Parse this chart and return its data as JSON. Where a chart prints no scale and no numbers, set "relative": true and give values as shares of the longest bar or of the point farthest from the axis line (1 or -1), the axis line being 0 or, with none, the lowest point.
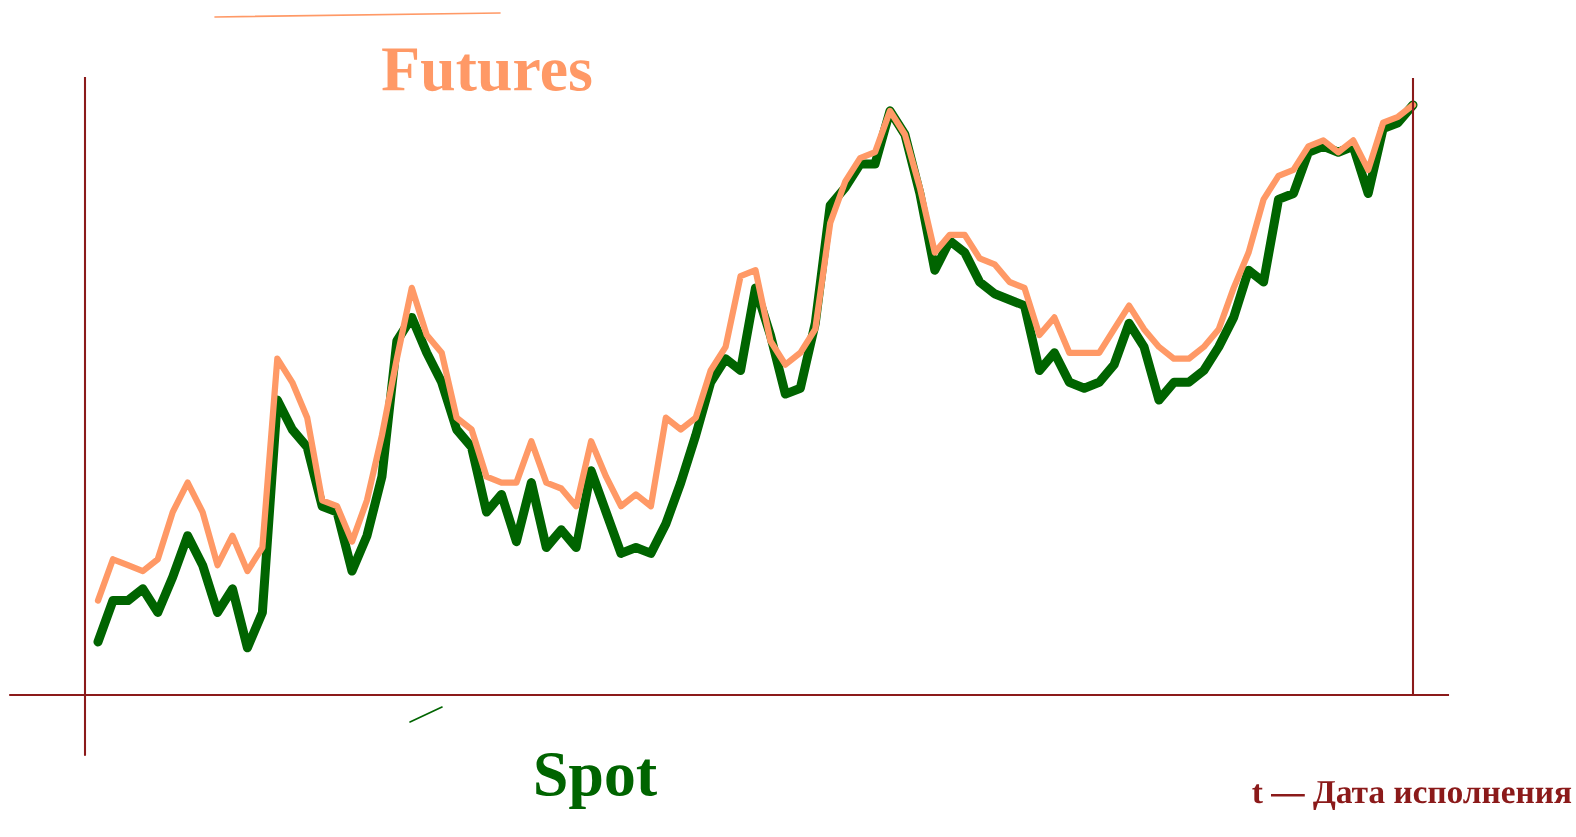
{
  "chart_data": {
    "type": "line",
    "relative": true,
    "legend": "top",
    "grid": false,
    "marker": "none",
    "line_style": "solid",
    "categories": [
      null,
      null,
      null,
      null,
      null,
      null,
      null,
      null,
      null,
      null,
      null,
      null,
      null,
      null,
      null,
      null,
      null,
      null,
      null,
      null,
      null,
      null,
      null,
      null,
      null,
      null,
      null,
      null,
      null,
      null,
      null,
      null,
      null,
      null,
      null,
      null,
      null,
      null,
      null,
      null,
      null,
      null,
      null,
      null,
      null,
      null,
      null,
      null,
      null,
      null,
      null,
      null,
      null,
      null,
      null,
      null,
      null,
      null,
      null,
      null,
      null,
      null,
      null,
      null,
      null,
      null,
      null,
      null,
      null,
      null,
      null,
      null,
      null,
      null,
      null,
      null,
      null,
      null,
      null,
      null,
      null,
      null,
      null,
      null,
      null,
      null,
      null,
      null,
      null
    ],
    "series": [
      {
        "name": "Spot",
        "color": "#006400",
        "values": [
          0.09,
          0.16,
          0.16,
          0.18,
          0.14,
          0.2,
          0.27,
          0.22,
          0.14,
          0.18,
          0.08,
          0.14,
          0.5,
          0.45,
          0.42,
          0.32,
          0.31,
          0.21,
          0.27,
          0.37,
          0.6,
          0.64,
          0.58,
          0.53,
          0.45,
          0.42,
          0.31,
          0.34,
          0.26,
          0.36,
          0.25,
          0.28,
          0.25,
          0.38,
          0.31,
          0.24,
          0.25,
          0.24,
          0.29,
          0.36,
          0.44,
          0.53,
          0.57,
          0.55,
          0.69,
          0.61,
          0.51,
          0.52,
          0.63,
          0.83,
          0.86,
          0.9,
          0.9,
          0.99,
          0.95,
          0.85,
          0.72,
          0.77,
          0.75,
          0.7,
          0.68,
          0.67,
          0.66,
          0.55,
          0.58,
          0.53,
          0.52,
          0.53,
          0.56,
          0.63,
          0.59,
          0.5,
          0.53,
          0.53,
          0.55,
          0.59,
          0.64,
          0.72,
          0.7,
          0.84,
          0.85,
          0.92,
          0.93,
          0.92,
          0.93,
          0.85,
          0.96,
          0.97,
          1.0
        ]
      },
      {
        "name": "Futures",
        "color": "#ff9966",
        "values": [
          0.16,
          0.23,
          0.22,
          0.21,
          0.23,
          0.31,
          0.36,
          0.31,
          0.22,
          0.27,
          0.21,
          0.25,
          0.57,
          0.53,
          0.47,
          0.33,
          0.32,
          0.26,
          0.33,
          0.44,
          0.57,
          0.69,
          0.61,
          0.58,
          0.47,
          0.45,
          0.37,
          0.36,
          0.36,
          0.43,
          0.36,
          0.35,
          0.32,
          0.43,
          0.37,
          0.32,
          0.34,
          0.32,
          0.47,
          0.45,
          0.47,
          0.55,
          0.59,
          0.71,
          0.72,
          0.6,
          0.56,
          0.58,
          0.62,
          0.8,
          0.87,
          0.91,
          0.92,
          0.99,
          0.95,
          0.86,
          0.75,
          0.78,
          0.78,
          0.74,
          0.73,
          0.7,
          0.69,
          0.61,
          0.64,
          0.58,
          0.58,
          0.58,
          0.62,
          0.66,
          0.62,
          0.59,
          0.57,
          0.57,
          0.59,
          0.62,
          0.69,
          0.75,
          0.84,
          0.88,
          0.89,
          0.93,
          0.94,
          0.92,
          0.94,
          0.89,
          0.97,
          0.98,
          1.0
        ]
      }
    ],
    "annotations": [
      "t — Дата исполнения"
    ]
  }
}
